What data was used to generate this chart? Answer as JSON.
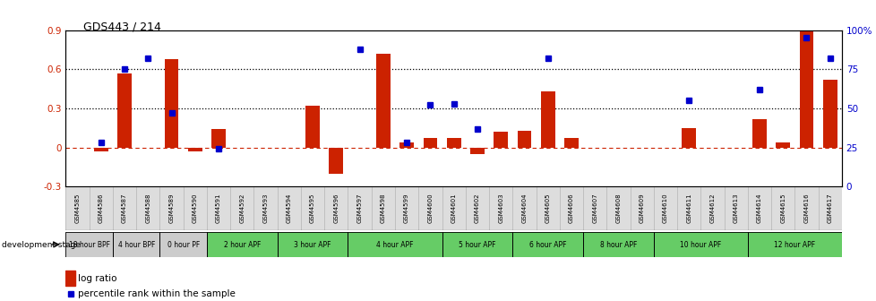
{
  "title": "GDS443 / 214",
  "samples": [
    "GSM4585",
    "GSM4586",
    "GSM4587",
    "GSM4588",
    "GSM4589",
    "GSM4590",
    "GSM4591",
    "GSM4592",
    "GSM4593",
    "GSM4594",
    "GSM4595",
    "GSM4596",
    "GSM4597",
    "GSM4598",
    "GSM4599",
    "GSM4600",
    "GSM4601",
    "GSM4602",
    "GSM4603",
    "GSM4604",
    "GSM4605",
    "GSM4606",
    "GSM4607",
    "GSM4608",
    "GSM4609",
    "GSM4610",
    "GSM4611",
    "GSM4612",
    "GSM4613",
    "GSM4614",
    "GSM4615",
    "GSM4616",
    "GSM4617"
  ],
  "log_ratio": [
    0.0,
    -0.03,
    0.57,
    0.0,
    0.68,
    -0.03,
    0.14,
    0.0,
    0.0,
    0.0,
    0.32,
    -0.2,
    0.0,
    0.72,
    0.04,
    0.07,
    0.07,
    -0.05,
    0.12,
    0.13,
    0.43,
    0.07,
    0.0,
    0.0,
    0.0,
    0.0,
    0.15,
    0.0,
    0.0,
    0.22,
    0.04,
    0.93,
    0.52
  ],
  "percentile": [
    null,
    28,
    75,
    82,
    47,
    null,
    24,
    null,
    null,
    null,
    null,
    null,
    88,
    null,
    28,
    52,
    53,
    37,
    null,
    null,
    82,
    null,
    null,
    null,
    null,
    null,
    55,
    null,
    null,
    62,
    null,
    95,
    82
  ],
  "ylim_left": [
    -0.3,
    0.9
  ],
  "ylim_right": [
    0,
    100
  ],
  "bar_color": "#cc2200",
  "dot_color": "#0000cc",
  "hline_y": [
    0.3,
    0.6
  ],
  "zero_line_color": "#cc2200",
  "stage_groups": [
    {
      "label": "18 hour BPF",
      "start": 0,
      "end": 1,
      "color": "#cccccc"
    },
    {
      "label": "4 hour BPF",
      "start": 2,
      "end": 3,
      "color": "#cccccc"
    },
    {
      "label": "0 hour PF",
      "start": 4,
      "end": 5,
      "color": "#cccccc"
    },
    {
      "label": "2 hour APF",
      "start": 6,
      "end": 8,
      "color": "#66cc66"
    },
    {
      "label": "3 hour APF",
      "start": 9,
      "end": 11,
      "color": "#66cc66"
    },
    {
      "label": "4 hour APF",
      "start": 12,
      "end": 15,
      "color": "#66cc66"
    },
    {
      "label": "5 hour APF",
      "start": 16,
      "end": 18,
      "color": "#66cc66"
    },
    {
      "label": "6 hour APF",
      "start": 19,
      "end": 21,
      "color": "#66cc66"
    },
    {
      "label": "8 hour APF",
      "start": 22,
      "end": 24,
      "color": "#66cc66"
    },
    {
      "label": "10 hour APF",
      "start": 25,
      "end": 28,
      "color": "#66cc66"
    },
    {
      "label": "12 hour APF",
      "start": 29,
      "end": 32,
      "color": "#66cc66"
    }
  ],
  "legend_bar_label": "log ratio",
  "legend_dot_label": "percentile rank within the sample",
  "dev_stage_label": "development stage"
}
